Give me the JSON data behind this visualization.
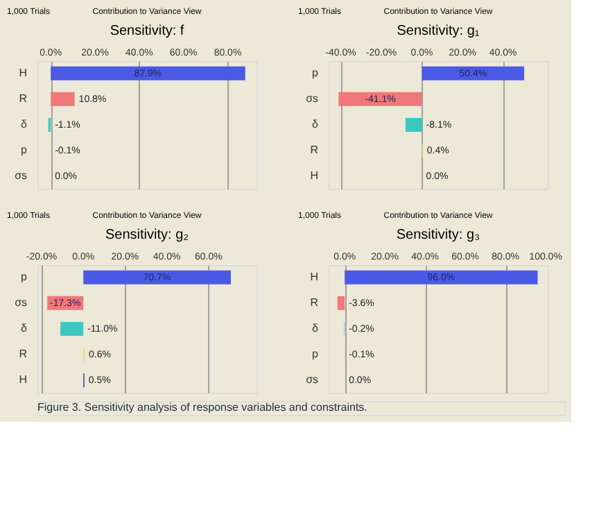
{
  "chart_data": [
    {
      "type": "bar",
      "orientation": "horizontal",
      "title": "Sensitivity: f",
      "annotations": [
        "1,000 Trials",
        "Contribution to Variance View"
      ],
      "categories": [
        "H",
        "R",
        "δ",
        "p",
        "σs"
      ],
      "values": [
        87.9,
        10.8,
        -1.1,
        -0.1,
        0.0
      ],
      "value_labels": [
        "87.9%",
        "10.8%",
        "-1.1%",
        "-0.1%",
        "0.0%"
      ],
      "colors": [
        "#4a5ae6",
        "#f07878",
        "#3cc8c0",
        "#e8e060",
        "#3040a0"
      ],
      "xlim": [
        -6,
        93
      ],
      "xticks": [
        {
          "value": 0,
          "label": "0.0%"
        },
        {
          "value": 20,
          "label": "20.0%"
        },
        {
          "value": 40,
          "label": "40.0%"
        },
        {
          "value": 60,
          "label": "60.0%"
        },
        {
          "value": 80,
          "label": "80.0%"
        }
      ],
      "grid": "x"
    },
    {
      "type": "bar",
      "orientation": "horizontal",
      "title": "Sensitivity: g₁",
      "annotations": [
        "1,000 Trials",
        "Contribution to Variance View"
      ],
      "categories": [
        "p",
        "σs",
        "δ",
        "R",
        "H"
      ],
      "values": [
        50.4,
        -41.1,
        -8.1,
        0.4,
        0.0
      ],
      "value_labels": [
        "50.4%",
        "-41.1%",
        "-8.1%",
        "0.4%",
        "0.0%"
      ],
      "colors": [
        "#4a5ae6",
        "#f07878",
        "#3cc8c0",
        "#e8e060",
        "#3040a0"
      ],
      "xlim": [
        -46,
        62
      ],
      "xticks": [
        {
          "value": -40,
          "label": "-40.0%"
        },
        {
          "value": -20,
          "label": "-20.0%"
        },
        {
          "value": 0,
          "label": "0.0%"
        },
        {
          "value": 20,
          "label": "20.0%"
        },
        {
          "value": 40,
          "label": "40.0%"
        }
      ],
      "grid": "x"
    },
    {
      "type": "bar",
      "orientation": "horizontal",
      "title": "Sensitivity: g₂",
      "annotations": [
        "1,000 Trials",
        "Contribution to Variance View"
      ],
      "categories": [
        "p",
        "σs",
        "δ",
        "R",
        "H"
      ],
      "values": [
        70.7,
        -17.3,
        -11.0,
        0.6,
        0.5
      ],
      "value_labels": [
        "70.7%",
        "-17.3%",
        "-11.0%",
        "0.6%",
        "0.5%"
      ],
      "colors": [
        "#4a5ae6",
        "#f07878",
        "#3cc8c0",
        "#e8e060",
        "#3040a0"
      ],
      "xlim": [
        -22,
        83
      ],
      "xticks": [
        {
          "value": -20,
          "label": "-20.0%"
        },
        {
          "value": 0,
          "label": "0.0%"
        },
        {
          "value": 20,
          "label": "20.0%"
        },
        {
          "value": 40,
          "label": "40.0%"
        },
        {
          "value": 60,
          "label": "60.0%"
        }
      ],
      "grid": "x"
    },
    {
      "type": "bar",
      "orientation": "horizontal",
      "title": "Sensitivity: g₃",
      "annotations": [
        "1,000 Trials",
        "Contribution to Variance View",
        "Figure 3. Sensitivity analysis of response variables and constraints."
      ],
      "categories": [
        "H",
        "R",
        "δ",
        "p",
        "σs"
      ],
      "values": [
        96.0,
        -3.6,
        -0.2,
        -0.1,
        0.0
      ],
      "value_labels": [
        "96.0%",
        "-3.6%",
        "-0.2%",
        "-0.1%",
        "0.0%"
      ],
      "colors": [
        "#4a5ae6",
        "#f07878",
        "#3cc8c0",
        "#e8e060",
        "#3040a0"
      ],
      "xlim": [
        -8,
        101
      ],
      "xticks": [
        {
          "value": 0,
          "label": "0.0%"
        },
        {
          "value": 20,
          "label": "20.0%"
        },
        {
          "value": 40,
          "label": "40.0%"
        },
        {
          "value": 60,
          "label": "60.0%"
        },
        {
          "value": 80,
          "label": "80.0%"
        },
        {
          "value": 100,
          "label": "100.0%"
        }
      ],
      "grid": "x"
    }
  ]
}
